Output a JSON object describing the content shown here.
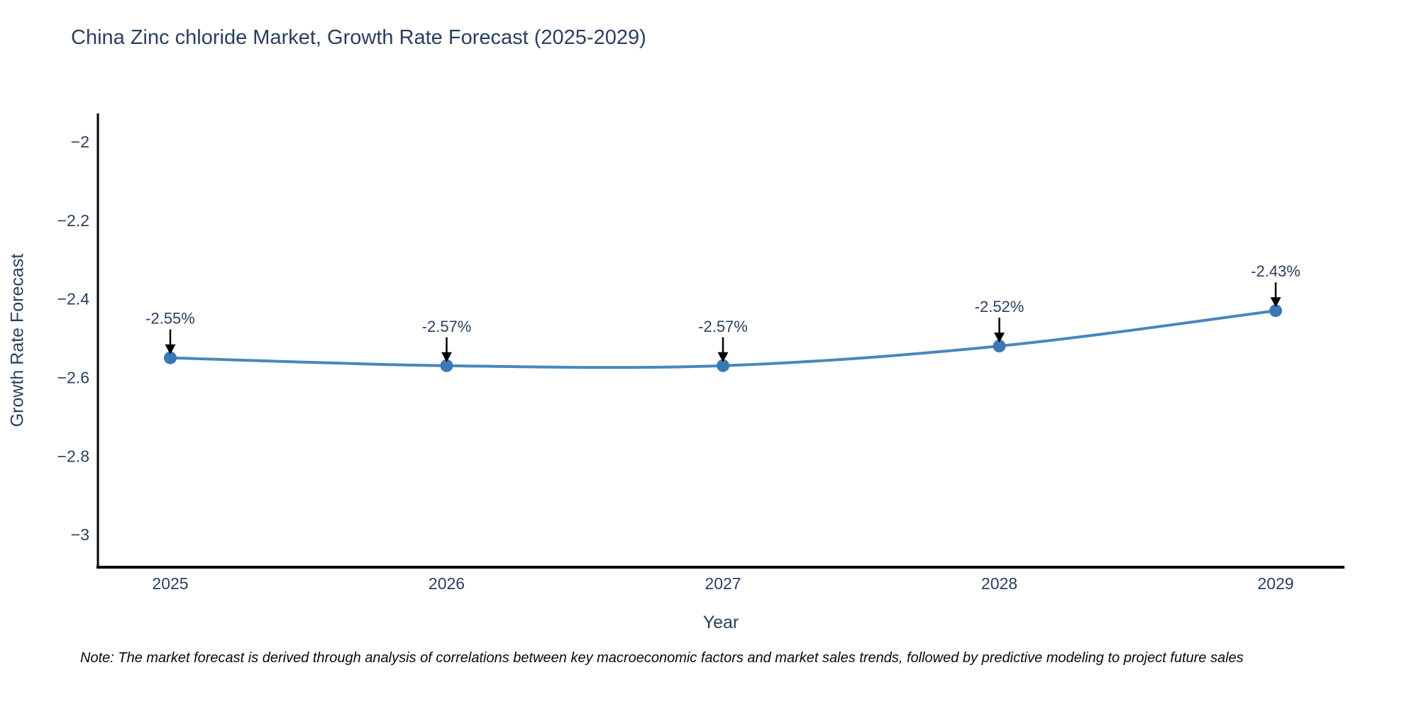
{
  "chart_data": {
    "type": "line",
    "title": "China Zinc chloride Market, Growth Rate Forecast (2025-2029)",
    "xlabel": "Year",
    "ylabel": "Growth Rate Forecast",
    "x": [
      2025,
      2026,
      2027,
      2028,
      2029
    ],
    "x_tick_labels": [
      "2025",
      "2026",
      "2027",
      "2028",
      "2029"
    ],
    "series": [
      {
        "name": "Growth Rate Forecast",
        "values": [
          -2.55,
          -2.57,
          -2.57,
          -2.52,
          -2.43
        ]
      }
    ],
    "point_labels": [
      "-2.55%",
      "-2.57%",
      "-2.57%",
      "-2.52%",
      "-2.43%"
    ],
    "y_ticks": [
      -2,
      -2.2,
      -2.4,
      -2.6,
      -2.8,
      -3
    ],
    "y_tick_labels": [
      "−2",
      "−2.2",
      "−2.4",
      "−2.6",
      "−2.8",
      "−3"
    ],
    "ylim": [
      -3.08,
      -1.93
    ],
    "grid": false,
    "legend": "none",
    "colors": {
      "line": "#4a86bd",
      "marker": "#3a78b5",
      "axis": "#000000",
      "text": "#2a3f5f",
      "annotation_arrow": "#000000"
    }
  },
  "note": {
    "text": "Note: The market forecast is derived through analysis of correlations between key macroeconomic factors and market sales trends, followed by predictive modeling to project future sales"
  }
}
